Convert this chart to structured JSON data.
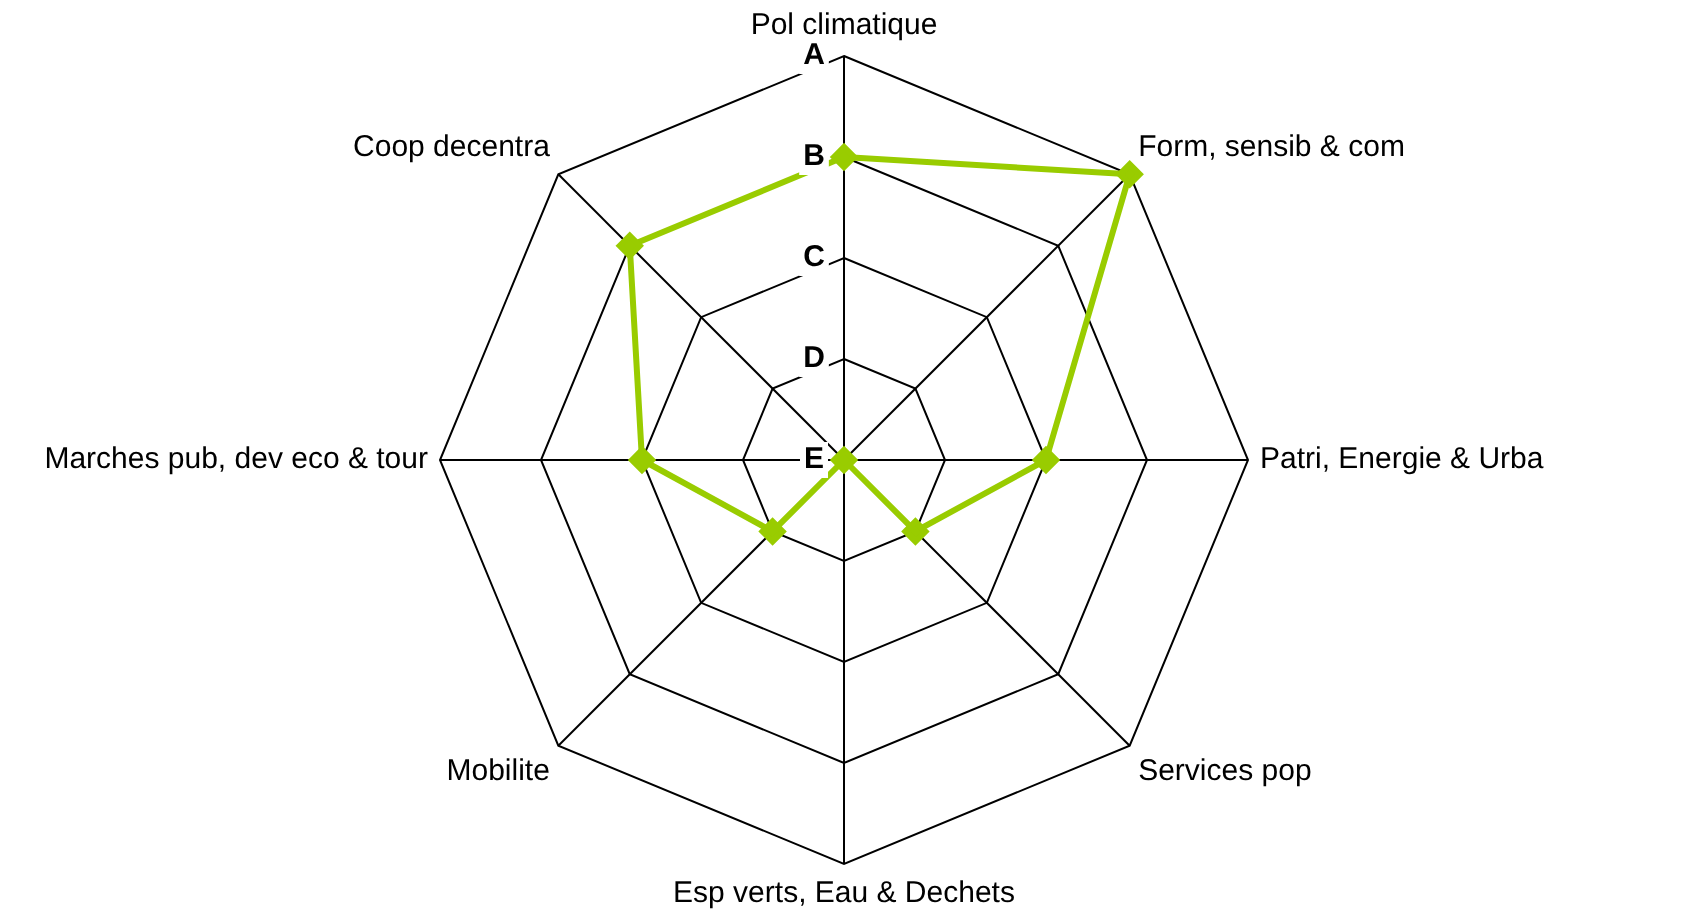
{
  "chart_data": {
    "type": "radar",
    "categories": [
      "Pol climatique",
      "Form, sensib & com",
      "Patri, Energie & Urba",
      "Services pop",
      "Esp verts, Eau & Dechets",
      "Mobilite",
      "Marches pub, dev eco & tour",
      "Coop decentra"
    ],
    "series": [
      {
        "color": "#99cc00",
        "values": [
          3,
          4,
          2,
          1,
          0,
          1,
          2,
          3
        ]
      }
    ],
    "ylim": [
      0,
      4
    ],
    "yticks": [
      {
        "value": 0,
        "label": "E"
      },
      {
        "value": 1,
        "label": "D"
      },
      {
        "value": 2,
        "label": "C"
      },
      {
        "value": 3,
        "label": "B"
      },
      {
        "value": 4,
        "label": "A"
      }
    ],
    "grid": true,
    "legend": false,
    "marker": "diamond",
    "line_style": "solid"
  }
}
